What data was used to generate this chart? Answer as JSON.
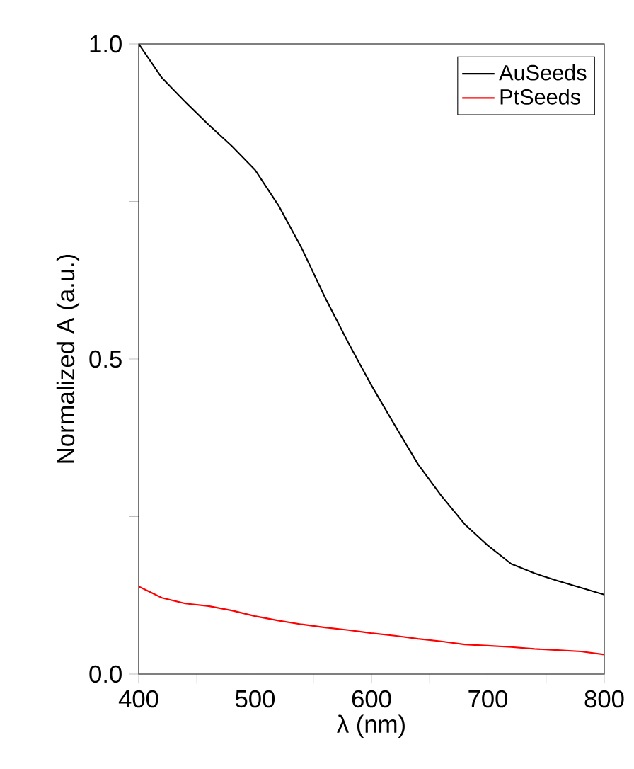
{
  "chart_data": {
    "type": "line",
    "xlabel": "λ (nm)",
    "ylabel": "Normalized A (a.u.)",
    "x": [
      400,
      420,
      440,
      460,
      480,
      500,
      520,
      540,
      560,
      580,
      600,
      620,
      640,
      660,
      680,
      700,
      720,
      740,
      760,
      780,
      800
    ],
    "series": [
      {
        "name": "AuSeeds",
        "color": "#000000",
        "values": [
          1.0,
          0.946,
          0.908,
          0.872,
          0.838,
          0.8,
          0.744,
          0.676,
          0.598,
          0.526,
          0.458,
          0.395,
          0.333,
          0.283,
          0.238,
          0.204,
          0.175,
          0.16,
          0.148,
          0.137,
          0.126
        ]
      },
      {
        "name": "PtSeeds",
        "color": "#ff0000",
        "values": [
          0.139,
          0.121,
          0.112,
          0.108,
          0.101,
          0.092,
          0.085,
          0.079,
          0.074,
          0.07,
          0.065,
          0.061,
          0.056,
          0.052,
          0.047,
          0.045,
          0.043,
          0.04,
          0.038,
          0.036,
          0.031
        ]
      }
    ],
    "xlim": [
      400,
      800
    ],
    "ylim": [
      0,
      1.0
    ],
    "xticks": [
      400,
      {
        "value": 450,
        "label": null
      },
      500,
      {
        "value": 550,
        "label": null
      },
      600,
      {
        "value": 650,
        "label": null
      },
      700,
      {
        "value": 750,
        "label": null
      },
      800
    ],
    "yticks": [
      {
        "value": 0,
        "label": "0.0"
      },
      {
        "value": 0.25,
        "label": null
      },
      0.5,
      {
        "value": 0.75,
        "label": null
      },
      {
        "value": 1.0,
        "label": "1.0"
      }
    ],
    "legend": "top right",
    "marker": "none",
    "line_style": "solid",
    "grid": false
  }
}
